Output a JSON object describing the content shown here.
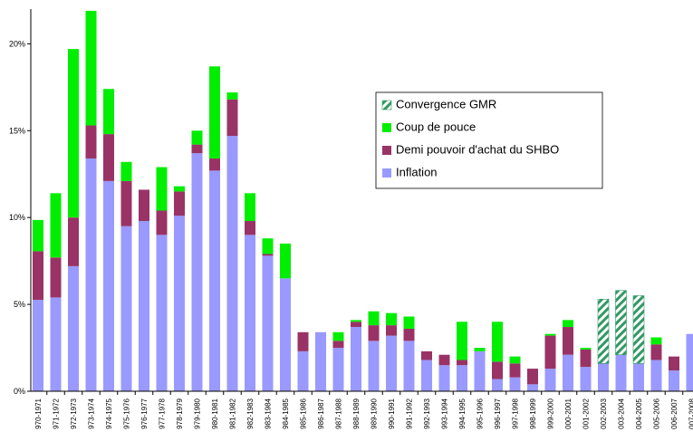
{
  "chart_data": {
    "type": "stacked_bar",
    "categories": [
      "970-1971",
      "971-1972",
      "972-1973",
      "973-1974",
      "974-1975",
      "975-1976",
      "976-1977",
      "977-1978",
      "978-1979",
      "979-1980",
      "980-1981",
      "981-1982",
      "982-1983",
      "983-1984",
      "984-1985",
      "985-1986",
      "986-1987",
      "987-1988",
      "988-1989",
      "989-1990",
      "990-1991",
      "991-1992",
      "992-1993",
      "993-1994",
      "994-1995",
      "995-1996",
      "996-1997",
      "997-1998",
      "998-1999",
      "999-2000",
      "000-2001",
      "001-2002",
      "002-2003",
      "003-2004",
      "004-2005",
      "005-2006",
      "006-2007",
      "007-2008"
    ],
    "series": [
      {
        "name": "Inflation",
        "color": "#9999ff",
        "values": [
          5.26,
          5.4,
          7.2,
          13.4,
          12.1,
          9.5,
          9.8,
          9.0,
          10.1,
          13.7,
          12.7,
          14.7,
          9.0,
          7.8,
          6.5,
          2.3,
          3.4,
          2.5,
          3.7,
          2.9,
          3.2,
          2.9,
          1.8,
          1.5,
          1.5,
          2.3,
          0.7,
          0.8,
          0.4,
          1.3,
          2.1,
          1.4,
          1.6,
          2.1,
          1.6,
          1.8,
          1.2,
          3.3
        ]
      },
      {
        "name": "Demi pouvoir d'achat du SHBO",
        "color": "#993366",
        "values": [
          2.8,
          2.3,
          2.8,
          1.9,
          2.7,
          2.6,
          1.8,
          1.4,
          1.4,
          0.5,
          0.7,
          2.1,
          0.8,
          0.1,
          0,
          1.1,
          0,
          0.4,
          0.3,
          0.9,
          0.6,
          0.7,
          0.5,
          0.6,
          0.3,
          0,
          1.0,
          0.8,
          0.9,
          1.9,
          1.6,
          1.0,
          0,
          0,
          0,
          0.9,
          0.8,
          0
        ]
      },
      {
        "name": "Coup de pouce",
        "color": "#00ee00",
        "values": [
          1.8,
          3.7,
          9.7,
          6.6,
          2.6,
          1.1,
          0,
          2.5,
          0.3,
          0.8,
          5.3,
          0.4,
          1.6,
          0.9,
          2.0,
          0,
          0,
          0.5,
          0.1,
          0.8,
          0.7,
          0.7,
          0,
          0,
          2.2,
          0.2,
          2.3,
          0.4,
          0,
          0.1,
          0.4,
          0.1,
          0,
          0,
          0,
          0.4,
          0,
          0
        ]
      },
      {
        "name": "Convergence GMR",
        "color": "#339966",
        "pattern": "hatch",
        "values": [
          0,
          0,
          0,
          0,
          0,
          0,
          0,
          0,
          0,
          0,
          0,
          0,
          0,
          0,
          0,
          0,
          0,
          0,
          0,
          0,
          0,
          0,
          0,
          0,
          0,
          0,
          0,
          0,
          0,
          0,
          0,
          0,
          3.7,
          3.7,
          3.9,
          0,
          0,
          0
        ]
      }
    ],
    "ylim": [
      0,
      22
    ],
    "yticks": [
      {
        "value": 0,
        "label": "0%"
      },
      {
        "value": 5,
        "label": "5%"
      },
      {
        "value": 10,
        "label": "10%"
      },
      {
        "value": 15,
        "label": "15%"
      },
      {
        "value": 20,
        "label": "20%"
      }
    ],
    "legend": "upper right"
  }
}
